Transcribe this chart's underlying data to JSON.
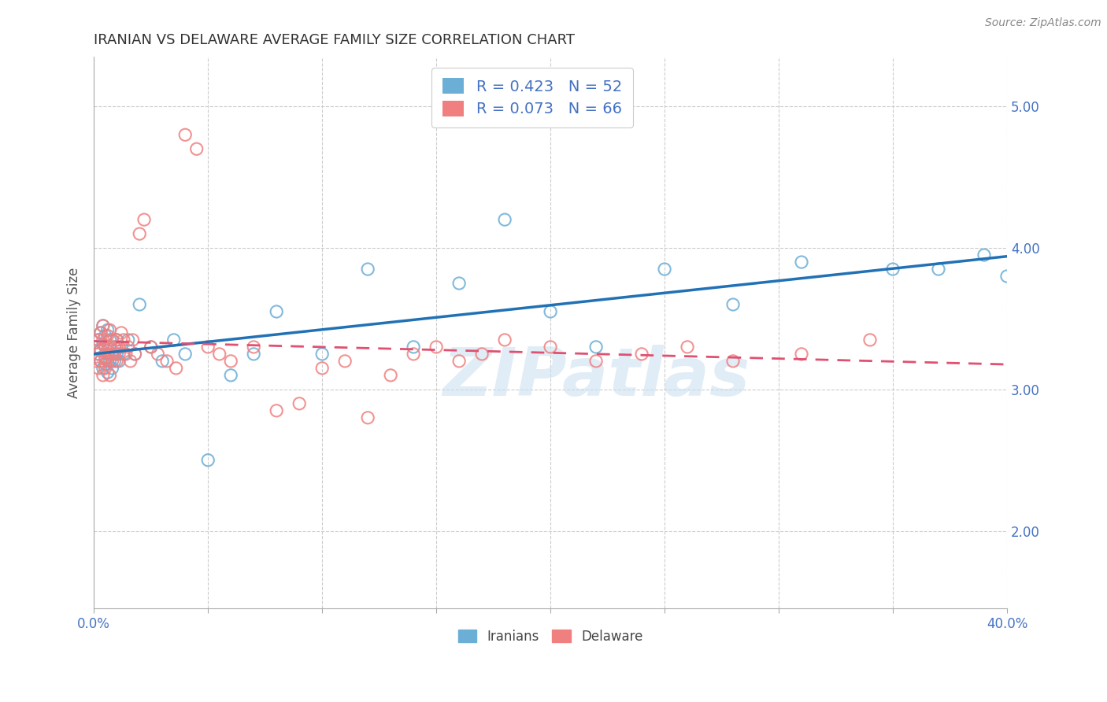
{
  "title": "IRANIAN VS DELAWARE AVERAGE FAMILY SIZE CORRELATION CHART",
  "source": "Source: ZipAtlas.com",
  "ylabel": "Average Family Size",
  "xlim": [
    0.0,
    0.4
  ],
  "ylim": [
    1.45,
    5.35
  ],
  "yticks": [
    2.0,
    3.0,
    4.0,
    5.0
  ],
  "xticks": [
    0.0,
    0.05,
    0.1,
    0.15,
    0.2,
    0.25,
    0.3,
    0.35,
    0.4
  ],
  "xtick_labels": [
    "0.0%",
    "",
    "",
    "",
    "",
    "",
    "",
    "",
    "40.0%"
  ],
  "iranians_edge_color": "#6baed6",
  "delaware_edge_color": "#f08080",
  "iranians_line_color": "#2171b5",
  "delaware_line_color": "#e05070",
  "R_iranians": 0.423,
  "N_iranians": 52,
  "R_delaware": 0.073,
  "N_delaware": 66,
  "background_color": "#ffffff",
  "grid_color": "#cccccc",
  "watermark_text": "ZIPatlas",
  "title_fontsize": 13,
  "axis_label_color": "#4472c4",
  "iranians_x": [
    0.001,
    0.002,
    0.002,
    0.003,
    0.003,
    0.003,
    0.004,
    0.004,
    0.004,
    0.005,
    0.005,
    0.005,
    0.006,
    0.006,
    0.006,
    0.007,
    0.007,
    0.007,
    0.008,
    0.008,
    0.009,
    0.009,
    0.01,
    0.01,
    0.011,
    0.012,
    0.013,
    0.015,
    0.018,
    0.02,
    0.025,
    0.03,
    0.035,
    0.04,
    0.05,
    0.06,
    0.07,
    0.08,
    0.1,
    0.12,
    0.14,
    0.16,
    0.18,
    0.2,
    0.22,
    0.25,
    0.28,
    0.31,
    0.35,
    0.37,
    0.39,
    0.4
  ],
  "iranians_y": [
    3.3,
    3.25,
    3.35,
    3.2,
    3.28,
    3.4,
    3.15,
    3.32,
    3.45,
    3.22,
    3.18,
    3.38,
    3.25,
    3.12,
    3.42,
    3.3,
    3.2,
    3.35,
    3.25,
    3.15,
    3.3,
    3.2,
    3.25,
    3.35,
    3.2,
    3.3,
    3.25,
    3.35,
    3.25,
    3.6,
    3.3,
    3.2,
    3.35,
    3.25,
    2.5,
    3.1,
    3.25,
    3.55,
    3.25,
    3.85,
    3.3,
    3.75,
    4.2,
    3.55,
    3.3,
    3.85,
    3.6,
    3.9,
    3.85,
    3.85,
    3.95,
    3.8
  ],
  "delaware_x": [
    0.001,
    0.001,
    0.002,
    0.002,
    0.002,
    0.003,
    0.003,
    0.003,
    0.004,
    0.004,
    0.004,
    0.005,
    0.005,
    0.005,
    0.006,
    0.006,
    0.006,
    0.007,
    0.007,
    0.007,
    0.008,
    0.008,
    0.008,
    0.009,
    0.009,
    0.01,
    0.01,
    0.011,
    0.011,
    0.012,
    0.013,
    0.014,
    0.015,
    0.016,
    0.017,
    0.018,
    0.02,
    0.022,
    0.025,
    0.028,
    0.032,
    0.036,
    0.04,
    0.045,
    0.05,
    0.055,
    0.06,
    0.07,
    0.08,
    0.09,
    0.1,
    0.11,
    0.12,
    0.13,
    0.14,
    0.15,
    0.16,
    0.17,
    0.18,
    0.2,
    0.22,
    0.24,
    0.26,
    0.28,
    0.31,
    0.34
  ],
  "delaware_y": [
    3.3,
    3.2,
    3.25,
    3.35,
    3.15,
    3.4,
    3.28,
    3.2,
    3.1,
    3.35,
    3.45,
    3.22,
    3.3,
    3.15,
    3.38,
    3.25,
    3.2,
    3.3,
    3.1,
    3.42,
    3.25,
    3.35,
    3.2,
    3.3,
    3.25,
    3.35,
    3.2,
    3.3,
    3.25,
    3.4,
    3.35,
    3.25,
    3.3,
    3.2,
    3.35,
    3.25,
    4.1,
    4.2,
    3.3,
    3.25,
    3.2,
    3.15,
    4.8,
    4.7,
    3.3,
    3.25,
    3.2,
    3.3,
    2.85,
    2.9,
    3.15,
    3.2,
    2.8,
    3.1,
    3.25,
    3.3,
    3.2,
    3.25,
    3.35,
    3.3,
    3.2,
    3.25,
    3.3,
    3.2,
    3.25,
    3.35
  ]
}
